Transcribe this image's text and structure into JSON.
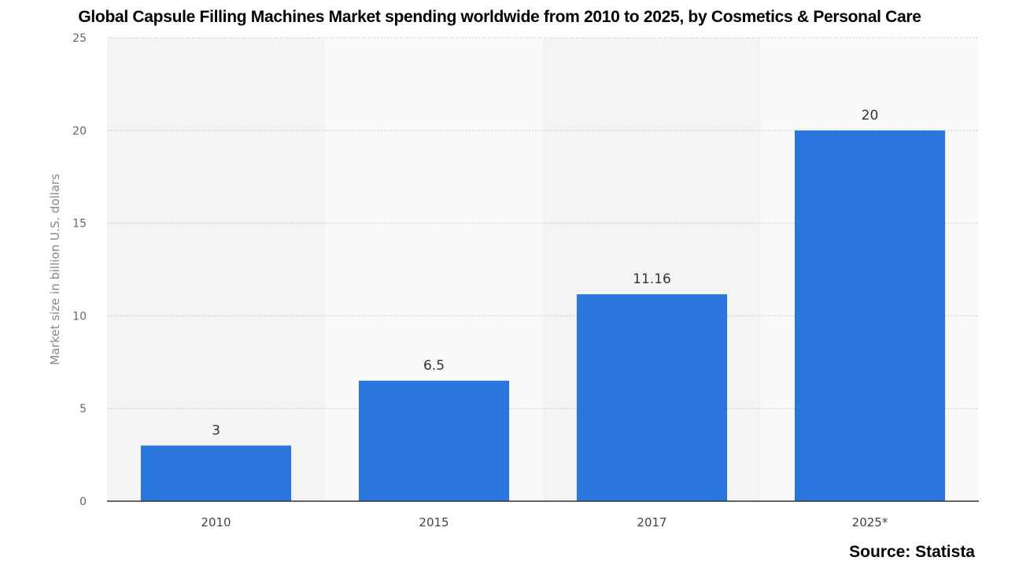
{
  "chart_data": {
    "type": "bar",
    "title": "Global Capsule Filling Machines Market spending worldwide from 2010 to 2025, by Cosmetics & Personal Care",
    "xlabel": "",
    "ylabel": "Market size in billion U.S. dollars",
    "categories": [
      "2010",
      "2015",
      "2017",
      "2025*"
    ],
    "values": [
      3,
      6.5,
      11.16,
      20
    ],
    "data_labels": [
      "3",
      "6.5",
      "11.16",
      "20"
    ],
    "ylim": [
      0,
      25
    ],
    "yticks": [
      0,
      5,
      10,
      15,
      20,
      25
    ],
    "grid": true,
    "bar_color": "#2a76dd",
    "source": "Source: Statista"
  }
}
